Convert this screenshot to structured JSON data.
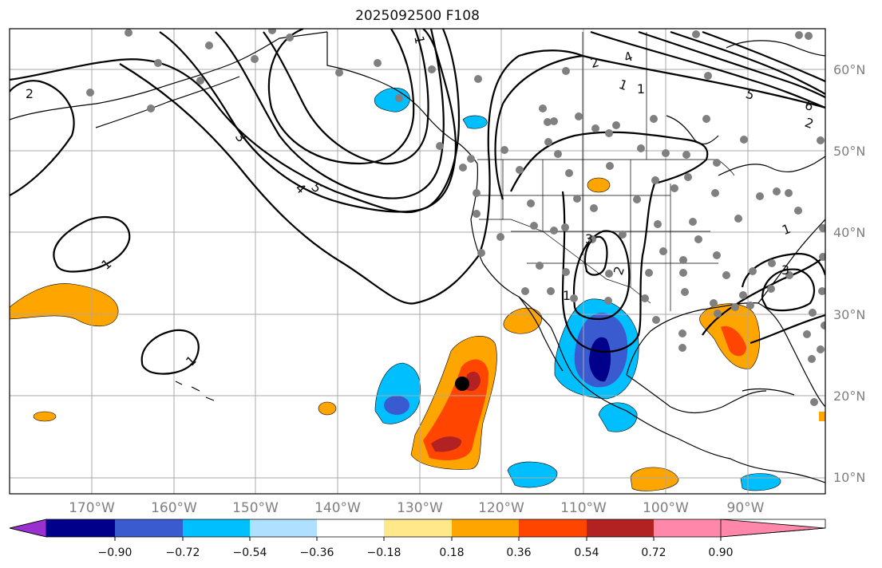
{
  "title": "2025092500 F108",
  "axes": {
    "lon_ticks": [
      "170°W",
      "160°W",
      "150°W",
      "140°W",
      "130°W",
      "120°W",
      "110°W",
      "100°W",
      "90°W"
    ],
    "lat_ticks": [
      "60°N",
      "50°N",
      "40°N",
      "30°N",
      "20°N",
      "10°N"
    ]
  },
  "colorbar": {
    "labels": [
      "−0.90",
      "−0.72",
      "−0.54",
      "−0.36",
      "−0.18",
      "0.18",
      "0.36",
      "0.54",
      "0.72",
      "0.90"
    ],
    "colors": [
      "#9b30d0",
      "#00008b",
      "#3a5bd0",
      "#00bfff",
      "#b0e0ff",
      "#ffffff",
      "#ffe88a",
      "#ffa500",
      "#ff4500",
      "#b22222",
      "#ff88aa"
    ]
  },
  "contour_labels": [
    "2",
    "1",
    "2",
    "4",
    "1",
    "5",
    "6",
    "2",
    "3",
    "4",
    "5",
    "1",
    "3",
    "2",
    "1",
    "3",
    "1",
    "1",
    "1"
  ],
  "marker": "forecast point"
}
